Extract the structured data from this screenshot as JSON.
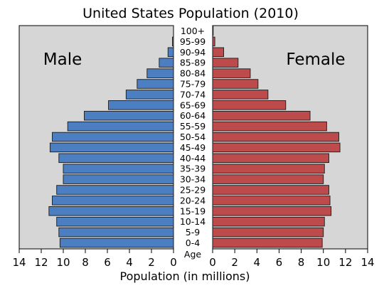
{
  "chart_data": {
    "type": "bar",
    "orientation": "horizontal",
    "title": "United States Population (2010)",
    "xlabel": "Population (in millions)",
    "age_axis_label": "Age",
    "categories": [
      "0-4",
      "5-9",
      "10-14",
      "15-19",
      "20-24",
      "25-29",
      "30-34",
      "35-39",
      "40-44",
      "45-49",
      "50-54",
      "55-59",
      "60-64",
      "65-69",
      "70-74",
      "75-79",
      "80-84",
      "85-89",
      "90-94",
      "95-99",
      "100+"
    ],
    "series": [
      {
        "name": "Male",
        "color": "#4c7fc2",
        "values": [
          10.3,
          10.4,
          10.6,
          11.3,
          11.0,
          10.6,
          10.0,
          10.0,
          10.4,
          11.2,
          11.0,
          9.6,
          8.1,
          5.9,
          4.3,
          3.3,
          2.4,
          1.3,
          0.5,
          0.1,
          0.0
        ]
      },
      {
        "name": "Female",
        "color": "#be4b4b",
        "values": [
          9.9,
          10.0,
          10.1,
          10.7,
          10.6,
          10.5,
          10.0,
          10.1,
          10.5,
          11.5,
          11.4,
          10.3,
          8.8,
          6.6,
          5.0,
          4.1,
          3.4,
          2.3,
          1.0,
          0.2,
          0.05
        ]
      }
    ],
    "xlim": [
      0,
      14
    ],
    "x_ticks": [
      "0",
      "2",
      "4",
      "6",
      "8",
      "10",
      "12",
      "14"
    ],
    "background": "#d6d6d6",
    "grid": false
  }
}
